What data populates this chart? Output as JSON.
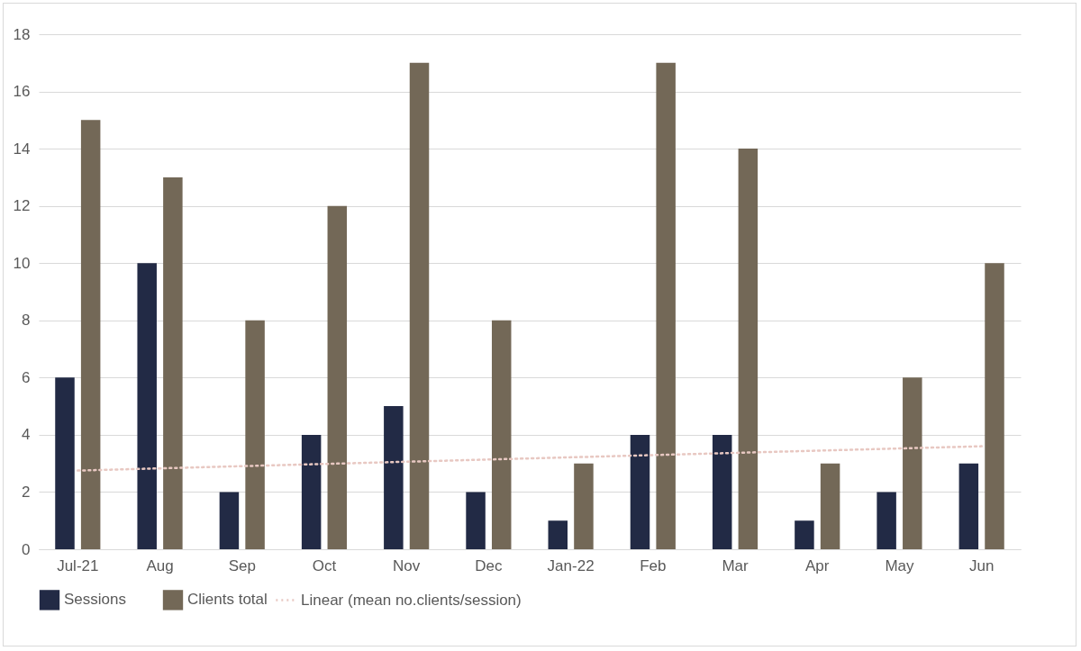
{
  "chart_data": {
    "type": "bar",
    "categories": [
      "Jul-21",
      "Aug",
      "Sep",
      "Oct",
      "Nov",
      "Dec",
      "Jan-22",
      "Feb",
      "Mar",
      "Apr",
      "May",
      "Jun"
    ],
    "series": [
      {
        "name": "Sessions",
        "color": "#222a45",
        "values": [
          6,
          10,
          2,
          4,
          5,
          2,
          1,
          4,
          4,
          1,
          2,
          3
        ]
      },
      {
        "name": "Clients total",
        "color": "#736857",
        "values": [
          15,
          13,
          8,
          12,
          17,
          8,
          3,
          17,
          14,
          3,
          6,
          10
        ]
      },
      {
        "name": "Linear (mean no.clients/session)",
        "type": "line",
        "color": "#e8c8c2",
        "line_style": "dotted",
        "marker": "none",
        "x": [
          "Jul-21",
          "Jun"
        ],
        "values": [
          2.75,
          3.6
        ]
      }
    ],
    "ylim": [
      0,
      18
    ],
    "yticks": [
      0,
      2,
      4,
      6,
      8,
      10,
      12,
      14,
      16,
      18
    ],
    "grid": "y",
    "legend": "bottom"
  }
}
